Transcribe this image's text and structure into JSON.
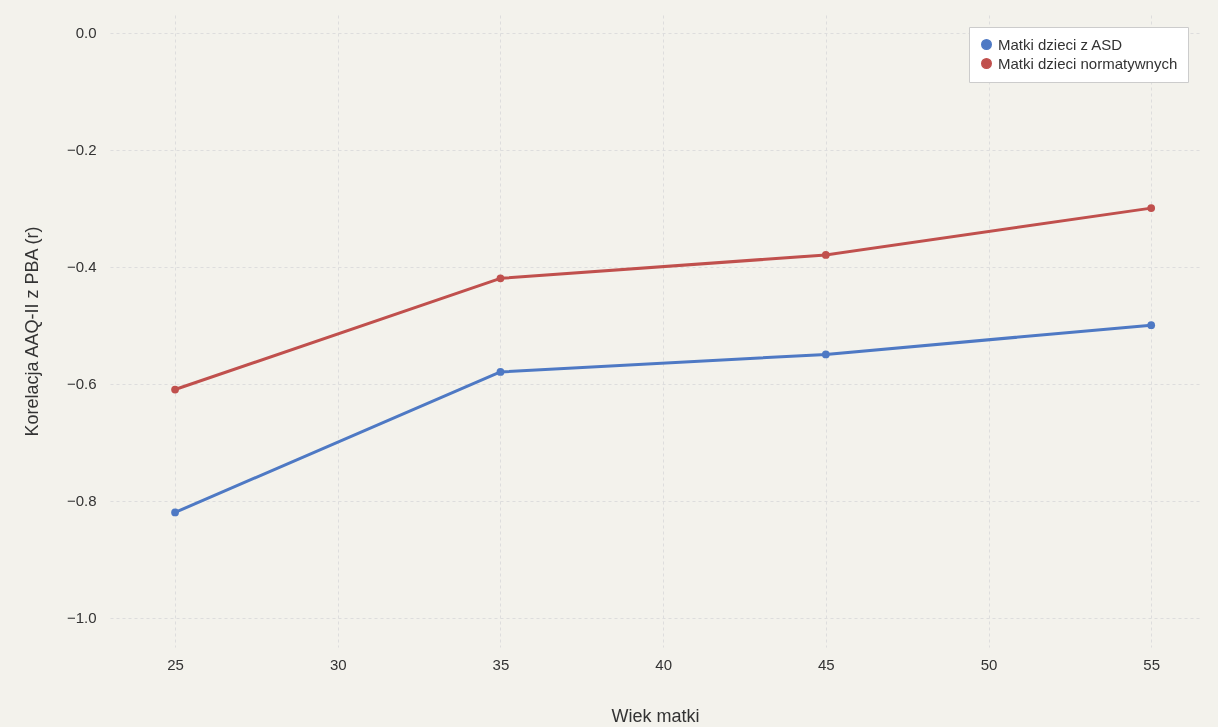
{
  "chart_data": {
    "type": "line",
    "xlabel": "Wiek matki",
    "ylabel": "Korelacja AAQ-II z PBA (r)",
    "x": [
      25,
      35,
      45,
      55
    ],
    "series": [
      {
        "name": "Matki dzieci z ASD",
        "color": "#4e79c4",
        "values": [
          -0.82,
          -0.58,
          -0.55,
          -0.5
        ]
      },
      {
        "name": "Matki dzieci normatywnych",
        "color": "#c0504d",
        "values": [
          -0.61,
          -0.42,
          -0.38,
          -0.3
        ]
      }
    ],
    "xlim": [
      23,
      56.5
    ],
    "xticks": [
      25,
      30,
      35,
      40,
      45,
      50,
      55
    ],
    "ylim": [
      -1.05,
      0.03
    ],
    "yticks": [
      {
        "value": -1.0,
        "label": "−1.0"
      },
      {
        "value": -0.8,
        "label": "−0.8"
      },
      {
        "value": -0.6,
        "label": "−0.6"
      },
      {
        "value": -0.4,
        "label": "−0.4"
      },
      {
        "value": -0.2,
        "label": "−0.2"
      },
      {
        "value": 0,
        "label": "0.0"
      }
    ],
    "grid": true,
    "legend": "top right",
    "marker": "circle",
    "line_style": "solid"
  }
}
